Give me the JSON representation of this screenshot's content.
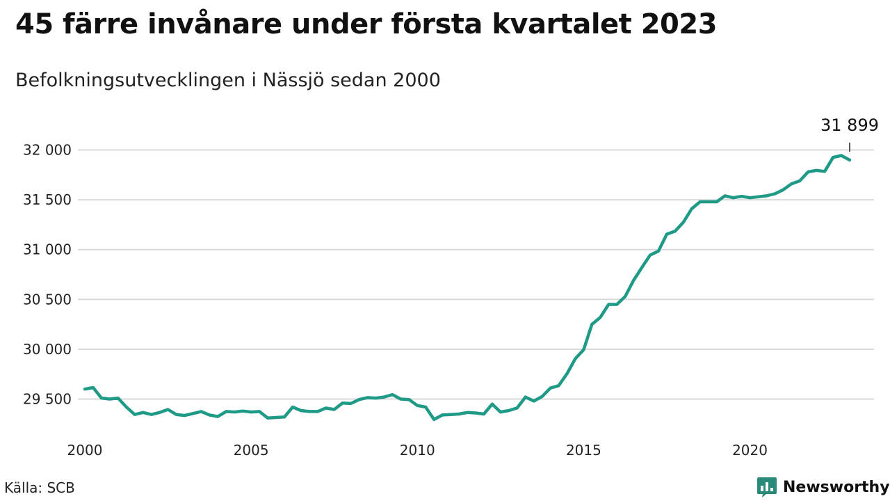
{
  "header": {
    "title": "45 färre invånare under första kvartalet 2023",
    "subtitle": "Befolkningsutvecklingen i Nässjö sedan 2000"
  },
  "footer": {
    "source": "Källa: SCB",
    "brand": "Newsworthy",
    "brand_icon": "bar-chart-speech-bubble-icon"
  },
  "colors": {
    "line": "#1f9a86",
    "grid": "#d9d9d9",
    "text": "#111111",
    "brand": "#2a8a7a"
  },
  "chart_data": {
    "type": "line",
    "title": "45 färre invånare under första kvartalet 2023",
    "subtitle": "Befolkningsutvecklingen i Nässjö sedan 2000",
    "xlabel": "",
    "ylabel": "",
    "xlim": [
      2000,
      2023.25
    ],
    "ylim": [
      29100,
      32150
    ],
    "x_ticks": [
      2000,
      2005,
      2010,
      2015,
      2020
    ],
    "x_tick_labels": [
      "2000",
      "2005",
      "2010",
      "2015",
      "2020"
    ],
    "y_ticks": [
      29500,
      30000,
      30500,
      31000,
      31500,
      32000
    ],
    "y_tick_labels": [
      "29 500",
      "30 000",
      "30 500",
      "31 000",
      "31 500",
      "32 000"
    ],
    "grid": true,
    "legend": "none",
    "annotation": {
      "text": "31 899",
      "x": 2023.0,
      "y": 31899
    },
    "series": [
      {
        "x": [
          2000.0,
          2000.25,
          2000.5,
          2000.75,
          2001.0,
          2001.25,
          2001.5,
          2001.75,
          2002.0,
          2002.25,
          2002.5,
          2002.75,
          2003.0,
          2003.25,
          2003.5,
          2003.75,
          2004.0,
          2004.25,
          2004.5,
          2004.75,
          2005.0,
          2005.25,
          2005.5,
          2005.75,
          2006.0,
          2006.25,
          2006.5,
          2006.75,
          2007.0,
          2007.25,
          2007.5,
          2007.75,
          2008.0,
          2008.25,
          2008.5,
          2008.75,
          2009.0,
          2009.25,
          2009.5,
          2009.75,
          2010.0,
          2010.25,
          2010.5,
          2010.75,
          2011.0,
          2011.25,
          2011.5,
          2011.75,
          2012.0,
          2012.25,
          2012.5,
          2012.75,
          2013.0,
          2013.25,
          2013.5,
          2013.75,
          2014.0,
          2014.25,
          2014.5,
          2014.75,
          2015.0,
          2015.25,
          2015.5,
          2015.75,
          2016.0,
          2016.25,
          2016.5,
          2016.75,
          2017.0,
          2017.25,
          2017.5,
          2017.75,
          2018.0,
          2018.25,
          2018.5,
          2018.75,
          2019.0,
          2019.25,
          2019.5,
          2019.75,
          2020.0,
          2020.25,
          2020.5,
          2020.75,
          2021.0,
          2021.25,
          2021.5,
          2021.75,
          2022.0,
          2022.25,
          2022.5,
          2022.75,
          2023.0
        ],
        "values": [
          29600,
          29615,
          29510,
          29500,
          29510,
          29420,
          29345,
          29365,
          29345,
          29365,
          29395,
          29345,
          29335,
          29355,
          29375,
          29340,
          29325,
          29375,
          29370,
          29380,
          29370,
          29375,
          29310,
          29315,
          29320,
          29420,
          29385,
          29375,
          29375,
          29410,
          29395,
          29460,
          29455,
          29495,
          29515,
          29510,
          29520,
          29545,
          29500,
          29495,
          29435,
          29420,
          29295,
          29340,
          29345,
          29350,
          29365,
          29360,
          29350,
          29450,
          29370,
          29385,
          29410,
          29520,
          29480,
          29525,
          29610,
          29635,
          29755,
          29905,
          29995,
          30250,
          30320,
          30450,
          30450,
          30530,
          30690,
          30820,
          30945,
          30985,
          31155,
          31185,
          31275,
          31410,
          31480,
          31480,
          31480,
          31540,
          31520,
          31535,
          31520,
          31530,
          31540,
          31560,
          31600,
          31660,
          31690,
          31780,
          31795,
          31785,
          31925,
          31944,
          31899
        ]
      }
    ]
  }
}
